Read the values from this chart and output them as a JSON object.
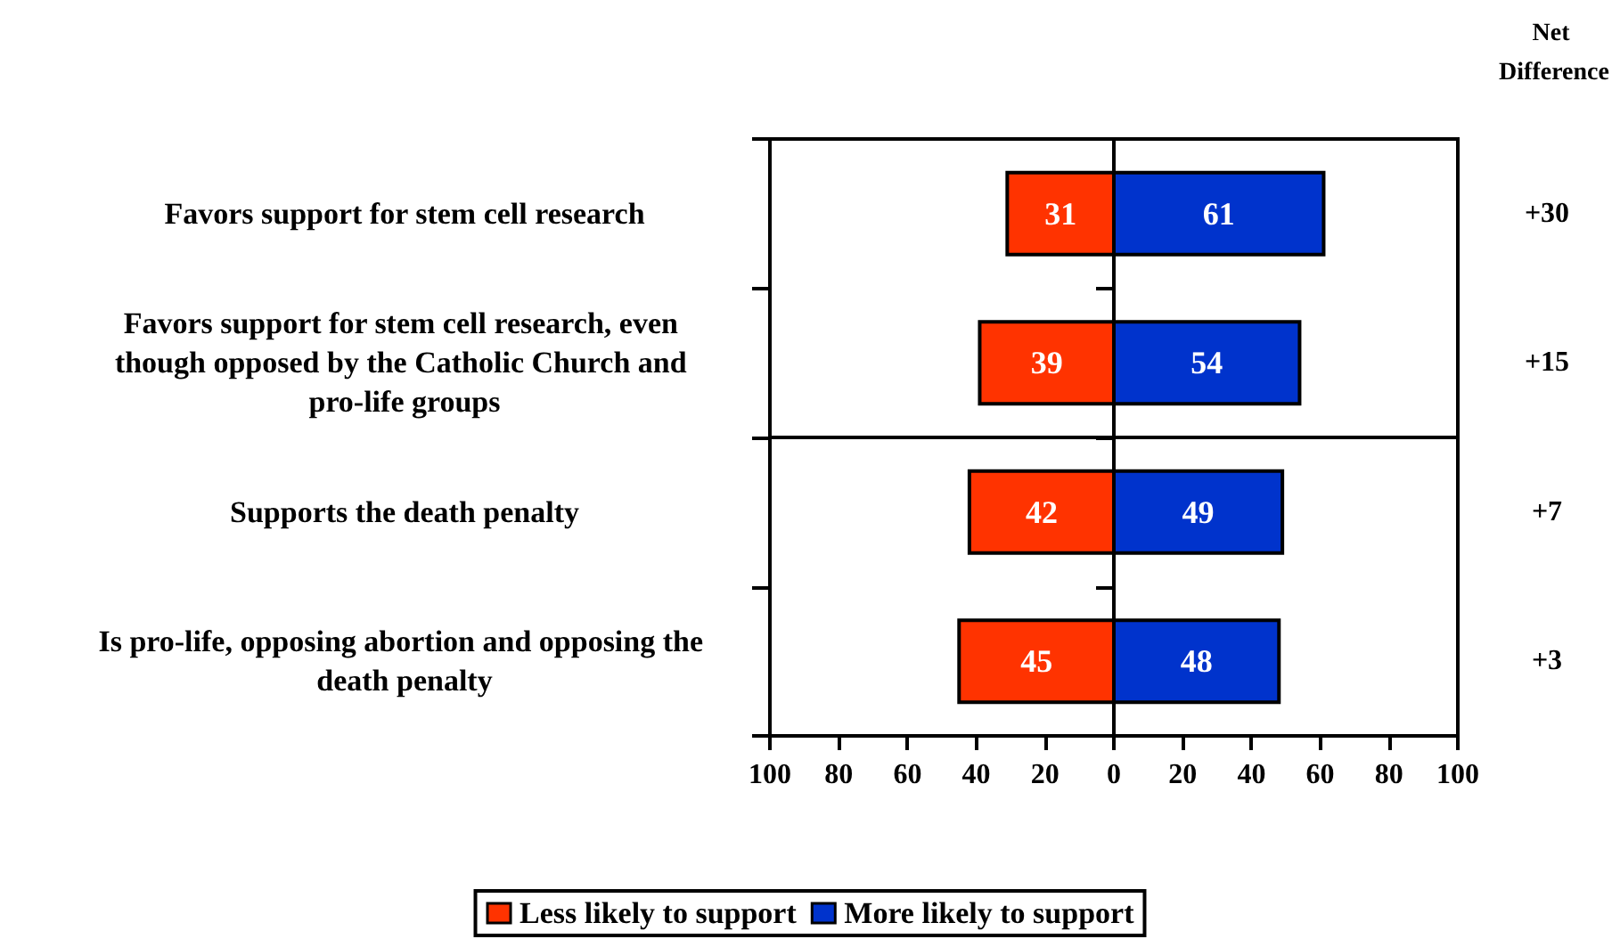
{
  "chart_data": {
    "type": "bar",
    "orientation": "horizontal",
    "categories": [
      "Favors support for stem cell research",
      "Favors support for stem cell research, even though opposed by the Catholic Church and pro-life groups",
      "Supports the death penalty",
      "Is pro-life, opposing abortion and opposing the death penalty"
    ],
    "series": [
      {
        "name": "Less likely to support",
        "color": "#ff3300",
        "values": [
          31,
          39,
          42,
          45
        ],
        "base": [
          -31,
          -39,
          -42,
          -45
        ]
      },
      {
        "name": "More likely to support",
        "color": "#0033cc",
        "values": [
          61,
          54,
          49,
          48
        ],
        "base": [
          0,
          0,
          0,
          0
        ]
      }
    ],
    "data_labels": true,
    "xlim": [
      -100,
      100
    ],
    "xticks": [
      {
        "value": -100,
        "label": "100"
      },
      {
        "value": -80,
        "label": "80"
      },
      {
        "value": -60,
        "label": "60"
      },
      {
        "value": -40,
        "label": "40"
      },
      {
        "value": -20,
        "label": "20"
      },
      0,
      20,
      40,
      60,
      80,
      100
    ],
    "annotations": [
      "Net Difference",
      "+30",
      "+15",
      "+7",
      "+3"
    ],
    "legend": "bottom"
  }
}
